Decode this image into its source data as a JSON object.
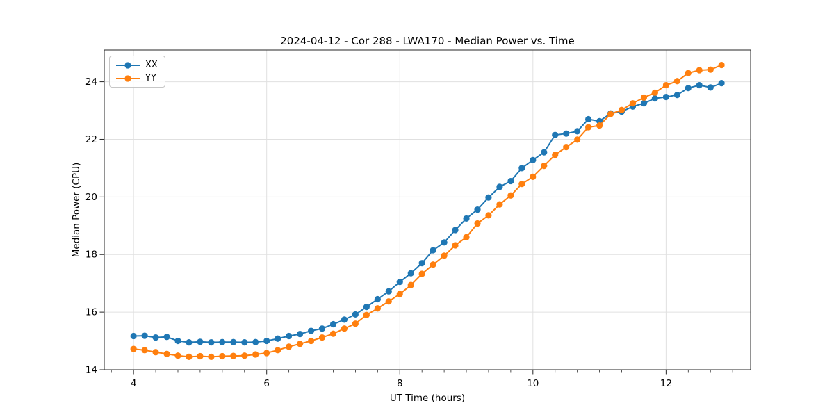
{
  "chart_data": {
    "type": "line",
    "title": "2024-04-12 - Cor 288 - LWA170 - Median Power vs. Time",
    "xlabel": "UT Time (hours)",
    "ylabel": "Median Power (CPU)",
    "xlim": [
      3.56,
      13.27
    ],
    "ylim": [
      14.0,
      25.1
    ],
    "x_ticks": [
      4,
      6,
      8,
      10,
      12
    ],
    "y_ticks": [
      14,
      16,
      18,
      20,
      22,
      24
    ],
    "x_minor_step": 0.3333,
    "grid": true,
    "legend_position": "upper left",
    "colors": {
      "grid": "#e0e0e0",
      "spine": "#262626",
      "tick": "#262626",
      "series_xx": "#1f77b4",
      "series_yy": "#ff7f0e"
    },
    "x": [
      4,
      4.167,
      4.333,
      4.5,
      4.667,
      4.833,
      5,
      5.167,
      5.333,
      5.5,
      5.667,
      5.833,
      6,
      6.167,
      6.333,
      6.5,
      6.667,
      6.833,
      7,
      7.167,
      7.333,
      7.5,
      7.667,
      7.833,
      8,
      8.167,
      8.333,
      8.5,
      8.667,
      8.833,
      9,
      9.167,
      9.333,
      9.5,
      9.667,
      9.833,
      10,
      10.167,
      10.333,
      10.5,
      10.667,
      10.833,
      11,
      11.167,
      11.333,
      11.5,
      11.667,
      11.833,
      12,
      12.167,
      12.333,
      12.5,
      12.667,
      12.833
    ],
    "series": [
      {
        "name": "XX",
        "color": "#1f77b4",
        "values": [
          15.17,
          15.18,
          15.12,
          15.14,
          15.0,
          14.95,
          14.97,
          14.95,
          14.96,
          14.96,
          14.95,
          14.96,
          15.0,
          15.08,
          15.17,
          15.24,
          15.35,
          15.43,
          15.58,
          15.74,
          15.92,
          16.18,
          16.45,
          16.72,
          17.05,
          17.35,
          17.7,
          18.15,
          18.42,
          18.85,
          19.25,
          19.56,
          19.98,
          20.35,
          20.55,
          21.0,
          21.28,
          21.55,
          22.15,
          22.2,
          22.28,
          22.7,
          22.63,
          22.9,
          22.96,
          23.14,
          23.25,
          23.42,
          23.47,
          23.54,
          23.78,
          23.88,
          23.8,
          23.95
        ]
      },
      {
        "name": "YY",
        "color": "#ff7f0e",
        "values": [
          14.72,
          14.68,
          14.61,
          14.55,
          14.49,
          14.45,
          14.47,
          14.45,
          14.47,
          14.48,
          14.49,
          14.53,
          14.58,
          14.68,
          14.8,
          14.9,
          15.0,
          15.12,
          15.25,
          15.43,
          15.6,
          15.9,
          16.13,
          16.37,
          16.63,
          16.94,
          17.33,
          17.65,
          17.96,
          18.32,
          18.6,
          19.08,
          19.36,
          19.74,
          20.05,
          20.45,
          20.7,
          21.08,
          21.46,
          21.73,
          21.99,
          22.42,
          22.48,
          22.88,
          23.02,
          23.25,
          23.45,
          23.62,
          23.88,
          24.02,
          24.3,
          24.4,
          24.42,
          24.58
        ]
      }
    ]
  }
}
